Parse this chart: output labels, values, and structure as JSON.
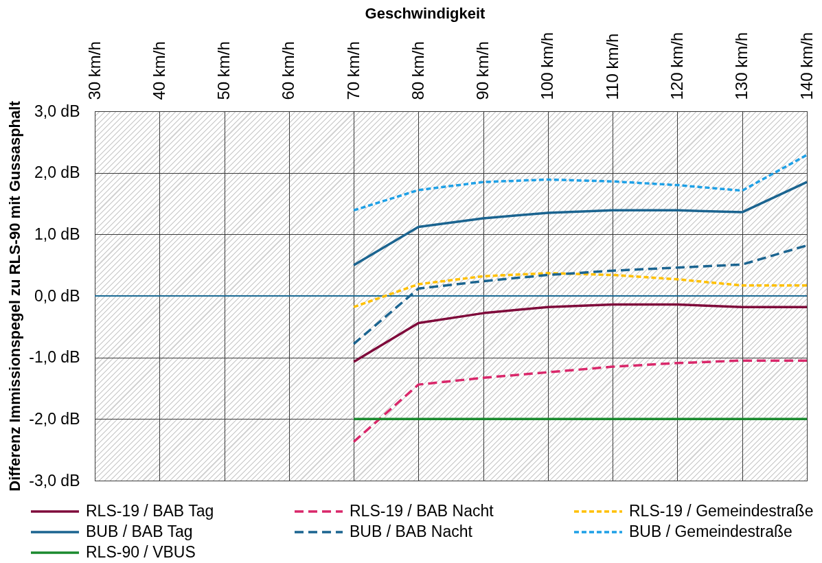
{
  "chart_data": {
    "type": "line",
    "xlabel": "Geschwindigkeit",
    "ylabel": "Differenz Immissionspegel zu RLS-90 mit Gussasphalt",
    "categories": [
      "30 km/h",
      "40 km/h",
      "50 km/h",
      "60 km/h",
      "70 km/h",
      "80 km/h",
      "90 km/h",
      "100 km/h",
      "110 km/h",
      "120 km/h",
      "130 km/h",
      "140 km/h"
    ],
    "series": [
      {
        "name": "RLS-19 / BAB Tag",
        "color": "#7f0b3b",
        "line_style": "solid",
        "values": [
          null,
          null,
          null,
          null,
          -1.07,
          -0.44,
          -0.28,
          -0.18,
          -0.14,
          -0.14,
          -0.18,
          -0.18
        ]
      },
      {
        "name": "RLS-19 / BAB Nacht",
        "color": "#d9276a",
        "line_style": "dashed",
        "values": [
          null,
          null,
          null,
          null,
          -2.37,
          -1.44,
          -1.33,
          -1.24,
          -1.15,
          -1.09,
          -1.05,
          -1.05
        ]
      },
      {
        "name": "RLS-19 / Gemeindestraße",
        "color": "#ffc000",
        "line_style": "dotted",
        "values": [
          null,
          null,
          null,
          null,
          -0.18,
          0.19,
          0.32,
          0.37,
          0.34,
          0.27,
          0.17,
          0.17
        ]
      },
      {
        "name": "BUB / BAB Tag",
        "color": "#1b6490",
        "line_style": "solid",
        "values": [
          null,
          null,
          null,
          null,
          0.5,
          1.12,
          1.26,
          1.35,
          1.39,
          1.39,
          1.36,
          1.85
        ]
      },
      {
        "name": "BUB / BAB Nacht",
        "color": "#1b6490",
        "line_style": "dashed",
        "values": [
          null,
          null,
          null,
          null,
          -0.78,
          0.12,
          0.24,
          0.34,
          0.41,
          0.46,
          0.51,
          0.82
        ]
      },
      {
        "name": "BUB / Gemeindestraße",
        "color": "#1ea0e6",
        "line_style": "dotted",
        "values": [
          null,
          null,
          null,
          null,
          1.39,
          1.72,
          1.85,
          1.89,
          1.86,
          1.8,
          1.71,
          2.29
        ]
      },
      {
        "name": "RLS-90 / VBUS",
        "color": "#1a8a2e",
        "line_style": "solid",
        "values": [
          null,
          null,
          null,
          null,
          -2,
          -2,
          -2,
          -2,
          -2,
          -2,
          -2,
          -2
        ]
      }
    ],
    "ylim": [
      -3,
      3
    ],
    "yticks": [
      {
        "value": -3,
        "label": "-3,0 dB"
      },
      {
        "value": -2,
        "label": "-2,0 dB"
      },
      {
        "value": -1,
        "label": "-1,0 dB"
      },
      {
        "value": 0,
        "label": "0,0 dB"
      },
      {
        "value": 1,
        "label": "1,0 dB"
      },
      {
        "value": 2,
        "label": "2,0 dB"
      },
      {
        "value": 3,
        "label": "3,0 dB"
      }
    ],
    "grid": true,
    "legend": "bottom",
    "ref_lines": [
      {
        "axis": "y",
        "value": 0,
        "color": "#1b6a94"
      }
    ]
  }
}
